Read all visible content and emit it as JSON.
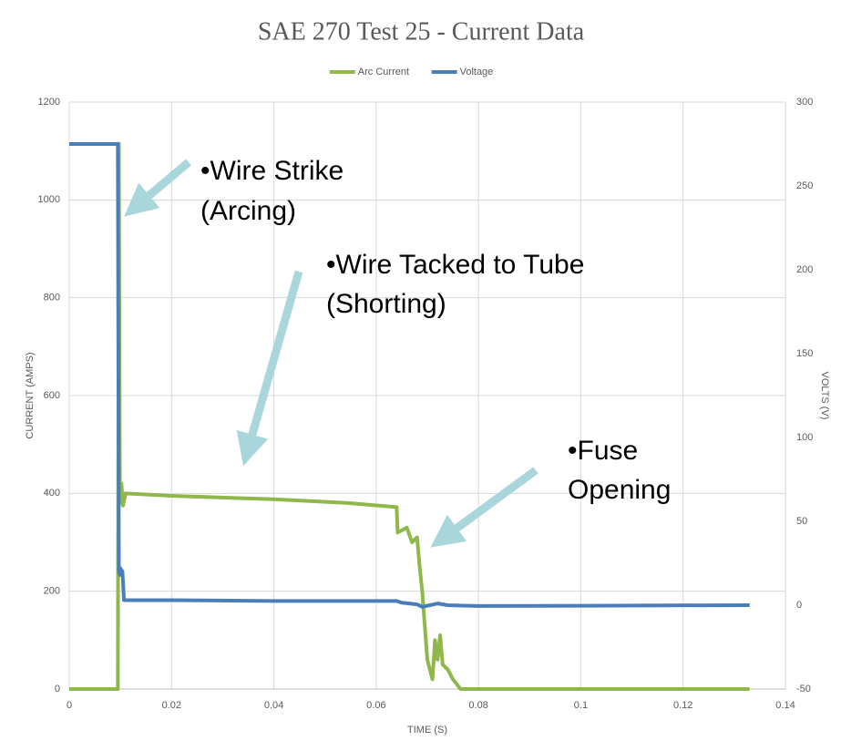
{
  "chart_data": {
    "type": "line",
    "title": "SAE 270 Test 25 - Current Data",
    "x_label": "TIME (S)",
    "y_label": "CURRENT (AMPS)",
    "y2_label": "VOLTS (V)",
    "xlim": [
      0,
      0.14
    ],
    "xticks": [
      0,
      0.02,
      0.04,
      0.06,
      0.08,
      0.1,
      0.12,
      0.14
    ],
    "ylim": [
      0,
      1200
    ],
    "yticks": [
      0,
      200,
      400,
      600,
      800,
      1000,
      1200
    ],
    "y2lim": [
      -50,
      300
    ],
    "y2ticks": [
      -50,
      0,
      50,
      100,
      150,
      200,
      250,
      300
    ],
    "grid": true,
    "legend": "top",
    "series": [
      {
        "name": "Arc Current",
        "color": "#8fb84a",
        "x": [
          0,
          0.0095,
          0.0097,
          0.0099,
          0.0102,
          0.0105,
          0.011,
          0.02,
          0.04,
          0.055,
          0.064,
          0.0642,
          0.066,
          0.067,
          0.068,
          0.0685,
          0.069,
          0.0695,
          0.07,
          0.071,
          0.0715,
          0.072,
          0.0725,
          0.073,
          0.074,
          0.075,
          0.0765,
          0.1,
          0.133
        ],
        "values": [
          0,
          0,
          1115,
          380,
          420,
          375,
          400,
          395,
          388,
          380,
          372,
          320,
          330,
          300,
          310,
          250,
          200,
          130,
          60,
          20,
          100,
          60,
          110,
          50,
          40,
          20,
          0,
          0,
          0
        ]
      },
      {
        "name": "Voltage",
        "color": "#4a7ebb",
        "axis": "y2",
        "x": [
          0,
          0.0095,
          0.0097,
          0.0099,
          0.01,
          0.0104,
          0.0107,
          0.02,
          0.04,
          0.064,
          0.065,
          0.068,
          0.069,
          0.0705,
          0.072,
          0.074,
          0.08,
          0.133
        ],
        "values": [
          275,
          275,
          20,
          18,
          22,
          20,
          3,
          3,
          2.5,
          2.5,
          1.5,
          0.5,
          -1,
          0,
          1,
          0,
          -0.5,
          0
        ]
      }
    ],
    "annotations": [
      {
        "lines": [
          "•Wire Strike",
          "(Arcing)"
        ]
      },
      {
        "lines": [
          "•Wire Tacked to Tube",
          "(Shorting)"
        ]
      },
      {
        "lines": [
          "•Fuse",
          "Opening"
        ]
      }
    ]
  }
}
